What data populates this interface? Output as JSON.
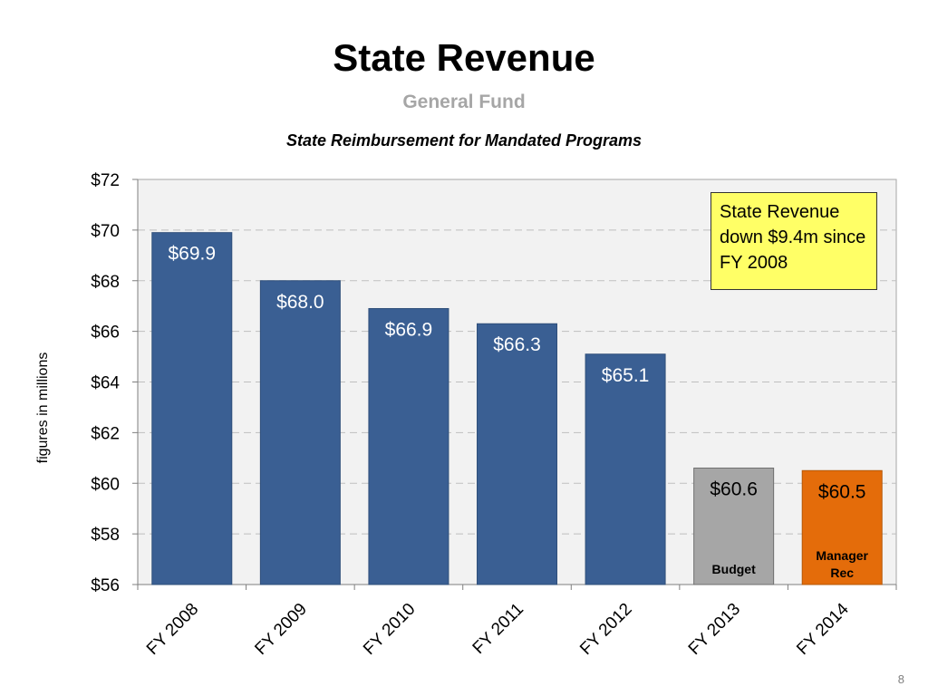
{
  "slide": {
    "title": "State Revenue",
    "subtitle": "General Fund",
    "page_number": "8"
  },
  "callout": {
    "text": "State Revenue down $9.4m since FY 2008"
  },
  "colors": {
    "bar_primary": "#3a5f93",
    "bar_budget": "#a6a6a6",
    "bar_manager": "#e46c0a",
    "callout_fill": "#ffff66",
    "plot_background": "#f2f2f2"
  },
  "chart_data": {
    "type": "bar",
    "title": "State Reimbursement for Mandated Programs",
    "ylabel": "figures in millions",
    "xlabel": "",
    "categories": [
      "FY 2008",
      "FY 2009",
      "FY 2010",
      "FY 2011",
      "FY 2012",
      "FY 2013",
      "FY 2014"
    ],
    "values": [
      69.9,
      68.0,
      66.9,
      66.3,
      65.1,
      60.6,
      60.5
    ],
    "data_labels": [
      "$69.9",
      "$68.0",
      "$66.9",
      "$66.3",
      "$65.1",
      "$60.6",
      "$60.5"
    ],
    "bar_notes": [
      "",
      "",
      "",
      "",
      "",
      "Budget",
      "Manager Rec"
    ],
    "ylim": [
      56,
      72
    ],
    "yticks": [
      56,
      58,
      60,
      62,
      64,
      66,
      68,
      70,
      72
    ],
    "ytick_labels": [
      "$56",
      "$58",
      "$60",
      "$62",
      "$64",
      "$66",
      "$68",
      "$70",
      "$72"
    ],
    "grid": true,
    "grid_style": "dashed"
  }
}
